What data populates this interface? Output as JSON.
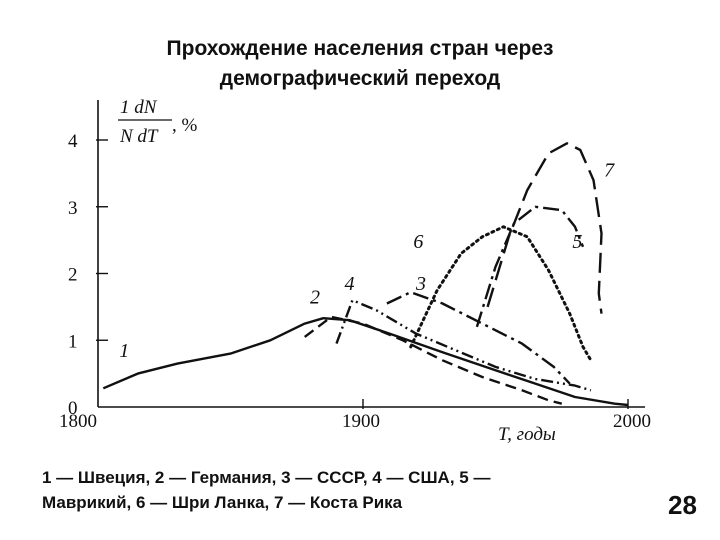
{
  "slide": {
    "title_line1": "Прохождение населения стран через",
    "title_line2": "демографический переход",
    "caption_line1": "1 — Швеция, 2 — Германия, 3 — СССР, 4 — США, 5 —",
    "caption_line2": "Маврикий, 6 — Шри Ланка, 7 — Коста Рика",
    "page_number": "28"
  },
  "chart_data": {
    "type": "line",
    "title": "",
    "ylabel_numerator": "1  dN",
    "ylabel_denominator": "N  dT",
    "ylabel_unit": ", %",
    "xlabel": "T, годы",
    "xlim": [
      1800,
      2000
    ],
    "ylim": [
      0,
      4
    ],
    "x_ticks": [
      "1800",
      "1900",
      "2000"
    ],
    "y_ticks": [
      "0",
      "1",
      "2",
      "3",
      "4"
    ],
    "grid": false,
    "series": [
      {
        "name": "1",
        "style": "solid",
        "label_x": 1808,
        "label_y": 0.75,
        "points": [
          [
            1802,
            0.28
          ],
          [
            1815,
            0.5
          ],
          [
            1830,
            0.65
          ],
          [
            1850,
            0.8
          ],
          [
            1865,
            1.0
          ],
          [
            1878,
            1.25
          ],
          [
            1885,
            1.33
          ],
          [
            1895,
            1.3
          ],
          [
            1910,
            1.1
          ],
          [
            1930,
            0.82
          ],
          [
            1950,
            0.55
          ],
          [
            1965,
            0.35
          ],
          [
            1980,
            0.15
          ],
          [
            1995,
            0.05
          ],
          [
            2000,
            0.03
          ]
        ]
      },
      {
        "name": "2",
        "style": "dashed",
        "label_x": 1880,
        "label_y": 1.55,
        "points": [
          [
            1878,
            1.05
          ],
          [
            1888,
            1.35
          ],
          [
            1900,
            1.25
          ],
          [
            1915,
            1.0
          ],
          [
            1930,
            0.7
          ],
          [
            1945,
            0.45
          ],
          [
            1960,
            0.25
          ],
          [
            1970,
            0.1
          ],
          [
            1975,
            0.05
          ]
        ]
      },
      {
        "name": "3",
        "style": "dashdot",
        "label_x": 1920,
        "label_y": 1.75,
        "points": [
          [
            1909,
            1.55
          ],
          [
            1918,
            1.72
          ],
          [
            1930,
            1.55
          ],
          [
            1945,
            1.25
          ],
          [
            1960,
            0.95
          ],
          [
            1972,
            0.6
          ],
          [
            1978,
            0.35
          ]
        ]
      },
      {
        "name": "4",
        "style": "dashdotdot",
        "label_x": 1893,
        "label_y": 1.75,
        "points": [
          [
            1890,
            0.95
          ],
          [
            1896,
            1.6
          ],
          [
            1905,
            1.45
          ],
          [
            1920,
            1.1
          ],
          [
            1935,
            0.85
          ],
          [
            1950,
            0.6
          ],
          [
            1965,
            0.42
          ],
          [
            1980,
            0.32
          ],
          [
            1986,
            0.25
          ]
        ]
      },
      {
        "name": "5",
        "style": "longdashdot",
        "label_x": 1979,
        "label_y": 2.38,
        "points": [
          [
            1943,
            1.2
          ],
          [
            1950,
            2.1
          ],
          [
            1957,
            2.75
          ],
          [
            1965,
            3.0
          ],
          [
            1975,
            2.95
          ],
          [
            1980,
            2.7
          ],
          [
            1983,
            2.4
          ]
        ]
      },
      {
        "name": "6",
        "style": "dotted",
        "label_x": 1919,
        "label_y": 2.38,
        "points": [
          [
            1918,
            0.9
          ],
          [
            1928,
            1.75
          ],
          [
            1937,
            2.3
          ],
          [
            1945,
            2.55
          ],
          [
            1953,
            2.7
          ],
          [
            1962,
            2.55
          ],
          [
            1970,
            2.05
          ],
          [
            1978,
            1.4
          ],
          [
            1983,
            0.9
          ],
          [
            1986,
            0.7
          ]
        ]
      },
      {
        "name": "7",
        "style": "longdash",
        "label_x": 1991,
        "label_y": 3.45,
        "points": [
          [
            1947,
            1.5
          ],
          [
            1955,
            2.55
          ],
          [
            1962,
            3.25
          ],
          [
            1970,
            3.8
          ],
          [
            1977,
            3.95
          ],
          [
            1982,
            3.85
          ],
          [
            1987,
            3.4
          ],
          [
            1990,
            2.6
          ],
          [
            1989,
            1.7
          ],
          [
            1990,
            1.4
          ]
        ]
      }
    ]
  }
}
